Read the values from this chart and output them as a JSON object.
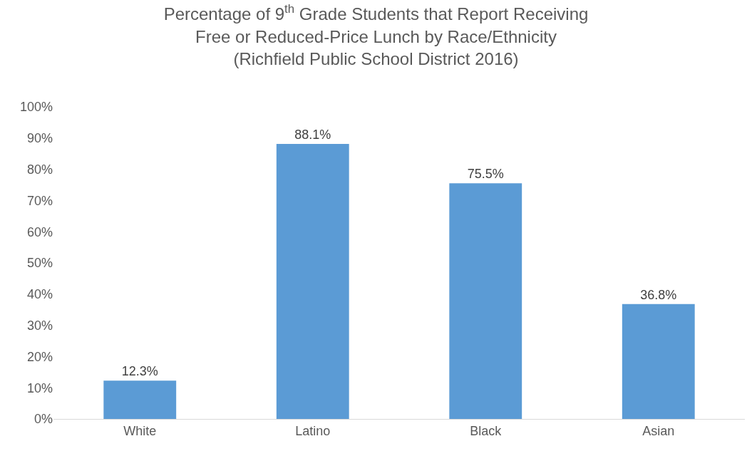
{
  "chart_data": {
    "type": "bar",
    "title": "Percentage of 9$^{th}$ Grade Students that Report Receiving\nFree or Reduced-Price Lunch by Race/Ethnicity\n(Richfield Public School District 2016)",
    "categories": [
      "White",
      "Latino",
      "Black",
      "Asian"
    ],
    "values": [
      12.3,
      88.1,
      75.5,
      36.8
    ],
    "value_labels": [
      "12.3%",
      "88.1%",
      "75.5%",
      "36.8%"
    ],
    "color": "#5b9bd5",
    "ylim": [
      0,
      100
    ],
    "yticks": [
      {
        "value": 0,
        "label": "0%"
      },
      {
        "value": 10,
        "label": "10%"
      },
      {
        "value": 20,
        "label": "20%"
      },
      {
        "value": 30,
        "label": "30%"
      },
      {
        "value": 40,
        "label": "40%"
      },
      {
        "value": 50,
        "label": "50%"
      },
      {
        "value": 60,
        "label": "60%"
      },
      {
        "value": 70,
        "label": "70%"
      },
      {
        "value": 80,
        "label": "80%"
      },
      {
        "value": 90,
        "label": "90%"
      },
      {
        "value": 100,
        "label": "100%"
      }
    ],
    "grid": false
  }
}
